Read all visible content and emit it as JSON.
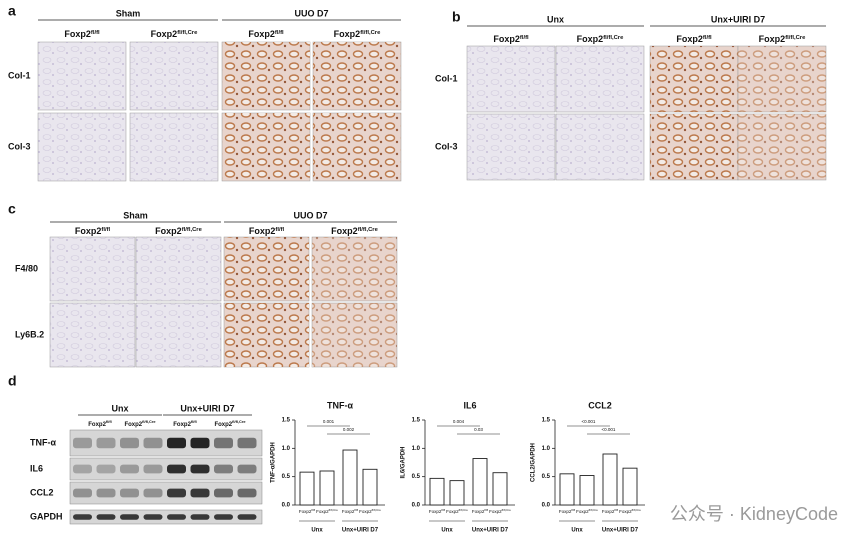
{
  "panels": [
    {
      "label": "a",
      "groups": [
        "Sham",
        "UUO D7"
      ],
      "columns": [
        {
          "base": "Foxp2",
          "sup": "fl/fl"
        },
        {
          "base": "Foxp2",
          "sup": "fl/fl,Cre"
        },
        {
          "base": "Foxp2",
          "sup": "fl/fl"
        },
        {
          "base": "Foxp2",
          "sup": "fl/fl,Cre"
        }
      ],
      "rows": [
        "Col-1",
        "Col-3"
      ]
    },
    {
      "label": "b",
      "groups": [
        "Unx",
        "Unx+UIRI D7"
      ],
      "columns": [
        {
          "base": "Foxp2",
          "sup": "fl/fl"
        },
        {
          "base": "Foxp2",
          "sup": "fl/fl,Cre"
        },
        {
          "base": "Foxp2",
          "sup": "fl/fl"
        },
        {
          "base": "Foxp2",
          "sup": "fl/fl,Cre"
        }
      ],
      "rows": [
        "Col-1",
        "Col-3"
      ]
    },
    {
      "label": "c",
      "groups": [
        "Sham",
        "UUO D7"
      ],
      "columns": [
        {
          "base": "Foxp2",
          "sup": "fl/fl"
        },
        {
          "base": "Foxp2",
          "sup": "fl/fl,Cre"
        },
        {
          "base": "Foxp2",
          "sup": "fl/fl"
        },
        {
          "base": "Foxp2",
          "sup": "fl/fl,Cre"
        }
      ],
      "rows": [
        "F4/80",
        "Ly6B.2"
      ]
    }
  ],
  "blot": {
    "label": "d",
    "groups": [
      "Unx",
      "Unx+UIRI D7"
    ],
    "columns": [
      {
        "base": "Foxp2",
        "sup": "fl/fl"
      },
      {
        "base": "Foxp2",
        "sup": "fl/fl,Cre"
      },
      {
        "base": "Foxp2",
        "sup": "fl/fl"
      },
      {
        "base": "Foxp2",
        "sup": "fl/fl,Cre"
      }
    ],
    "rows": [
      "TNF-α",
      "IL6",
      "CCL2",
      "GAPDH"
    ]
  },
  "chart_data": [
    {
      "type": "bar",
      "title": "TNF-α",
      "ylabel": "TNF-α/GAPDH",
      "categories": [
        {
          "base": "Foxp2",
          "sup": "fl/fl"
        },
        {
          "base": "Foxp2",
          "sup": "fl/fl,Cre"
        },
        {
          "base": "Foxp2",
          "sup": "fl/fl"
        },
        {
          "base": "Foxp2",
          "sup": "fl/fl,Cre"
        }
      ],
      "groups": [
        "Unx",
        "Unx+UIRI D7"
      ],
      "values": [
        0.58,
        0.6,
        0.97,
        0.63
      ],
      "p_values": [
        "0.001",
        "0.002"
      ],
      "ylim": [
        0,
        1.5
      ],
      "yticks": [
        {
          "value": 0,
          "label": "0.0"
        },
        0.5,
        {
          "value": 1,
          "label": "1.0"
        },
        1.5
      ],
      "color": "#ffffff"
    },
    {
      "type": "bar",
      "title": "IL6",
      "ylabel": "IL6/GAPDH",
      "categories": [
        {
          "base": "Foxp2",
          "sup": "fl/fl"
        },
        {
          "base": "Foxp2",
          "sup": "fl/fl,Cre"
        },
        {
          "base": "Foxp2",
          "sup": "fl/fl"
        },
        {
          "base": "Foxp2",
          "sup": "fl/fl,Cre"
        }
      ],
      "groups": [
        "Unx",
        "Unx+UIRI D7"
      ],
      "values": [
        0.47,
        0.43,
        0.82,
        0.57
      ],
      "p_values": [
        "0.004",
        "0.03"
      ],
      "ylim": [
        0,
        1.5
      ],
      "yticks": [
        {
          "value": 0,
          "label": "0.0"
        },
        0.5,
        {
          "value": 1,
          "label": "1.0"
        },
        1.5
      ],
      "color": "#ffffff"
    },
    {
      "type": "bar",
      "title": "CCL2",
      "ylabel": "CCL2/GAPDH",
      "categories": [
        {
          "base": "Foxp2",
          "sup": "fl/fl"
        },
        {
          "base": "Foxp2",
          "sup": "fl/fl,Cre"
        },
        {
          "base": "Foxp2",
          "sup": "fl/fl"
        },
        {
          "base": "Foxp2",
          "sup": "fl/fl,Cre"
        }
      ],
      "groups": [
        "Unx",
        "Unx+UIRI D7"
      ],
      "values": [
        0.55,
        0.52,
        0.9,
        0.65
      ],
      "p_values": [
        "<0.001",
        "<0.001"
      ],
      "ylim": [
        0,
        1.5
      ],
      "yticks": [
        {
          "value": 0,
          "label": "0.0"
        },
        0.5,
        {
          "value": 1,
          "label": "1.0"
        },
        1.5
      ],
      "color": "#ffffff"
    }
  ],
  "watermark": "公众号 · KidneyCode"
}
